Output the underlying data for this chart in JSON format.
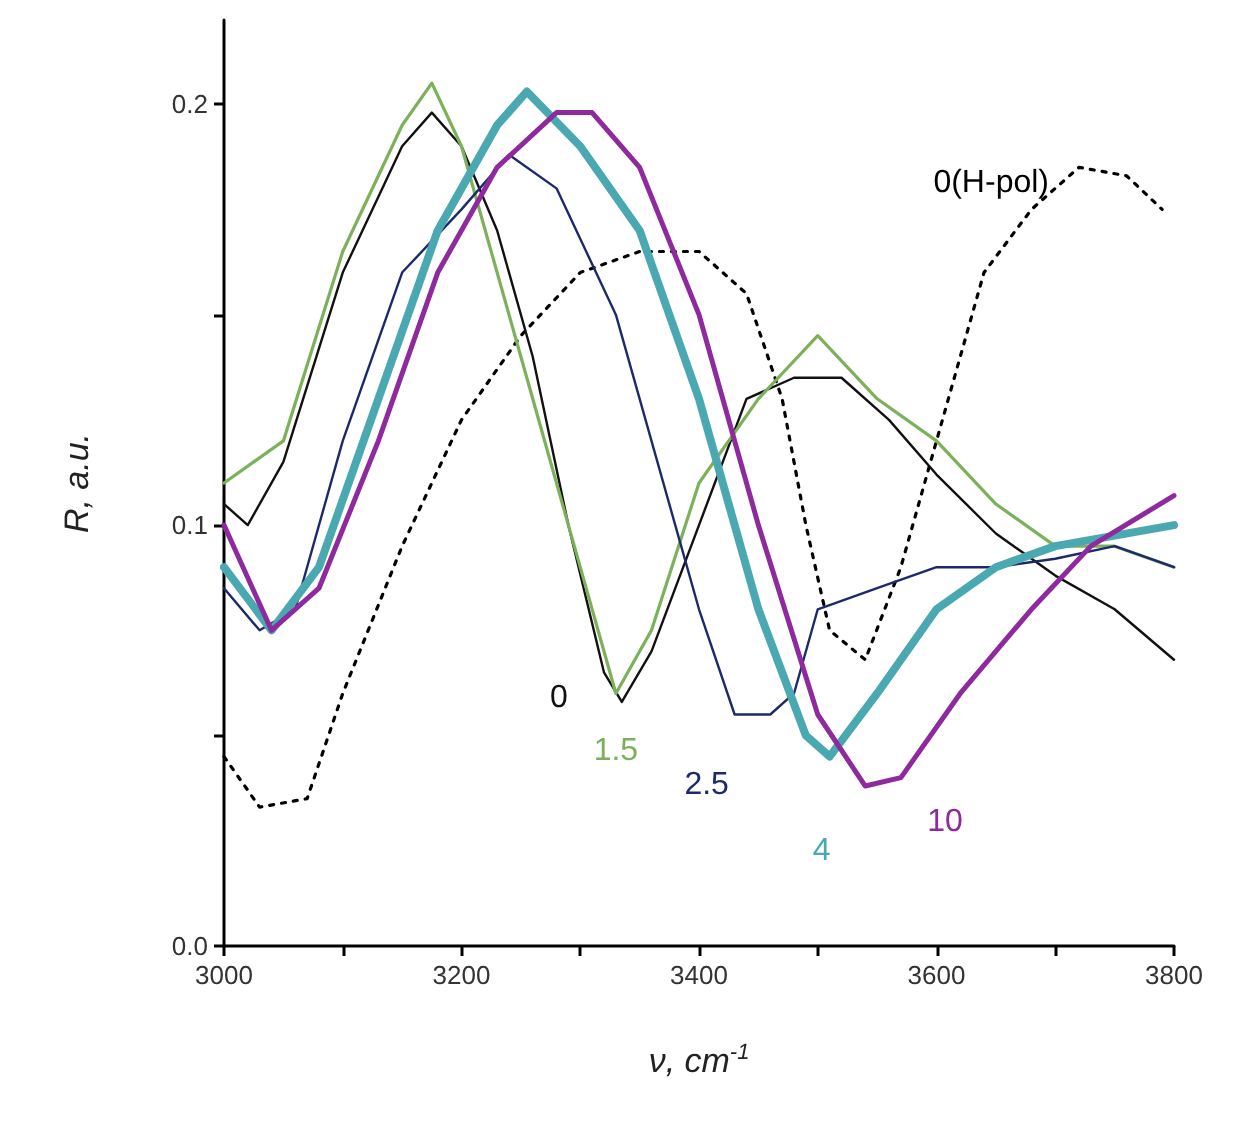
{
  "chart_data": {
    "type": "line",
    "xlabel": "ν, cm$^{-1}$",
    "ylabel": "R, a.u.",
    "xlim": [
      3000,
      3800
    ],
    "ylim": [
      0,
      0.22
    ],
    "xticks": [
      3000,
      {
        "value": 3100,
        "label": null
      },
      3200,
      {
        "value": 3300,
        "label": null
      },
      3400,
      {
        "value": 3500,
        "label": null
      },
      3600,
      {
        "value": 3700,
        "label": null
      },
      3800
    ],
    "yticks": [
      {
        "value": 0,
        "label": "0.0"
      },
      {
        "value": 0.05,
        "label": null
      },
      {
        "value": 0.1,
        "label": "0.1"
      },
      {
        "value": 0.15,
        "label": null
      },
      {
        "value": 0.2,
        "label": "0.2"
      }
    ],
    "grid": false,
    "legend": false,
    "marker": "none",
    "series": [
      {
        "name": "0(H-pol)",
        "color": "#000000",
        "line_style": "dotted",
        "x": [
          3000,
          3030,
          3070,
          3100,
          3150,
          3200,
          3250,
          3300,
          3350,
          3400,
          3440,
          3470,
          3490,
          3510,
          3540,
          3570,
          3600,
          3640,
          3680,
          3720,
          3760,
          3790
        ],
        "values": [
          0.045,
          0.033,
          0.035,
          0.06,
          0.095,
          0.125,
          0.145,
          0.16,
          0.165,
          0.165,
          0.155,
          0.13,
          0.1,
          0.075,
          0.068,
          0.09,
          0.12,
          0.16,
          0.175,
          0.185,
          0.183,
          0.175
        ]
      },
      {
        "name": "0",
        "color": "#111111",
        "x": [
          3000,
          3020,
          3050,
          3100,
          3150,
          3175,
          3200,
          3230,
          3260,
          3290,
          3320,
          3335,
          3360,
          3400,
          3440,
          3480,
          3520,
          3560,
          3600,
          3650,
          3700,
          3750,
          3800
        ],
        "values": [
          0.105,
          0.1,
          0.115,
          0.16,
          0.19,
          0.198,
          0.19,
          0.17,
          0.14,
          0.1,
          0.065,
          0.058,
          0.07,
          0.1,
          0.13,
          0.135,
          0.135,
          0.125,
          0.112,
          0.098,
          0.088,
          0.08,
          0.068
        ]
      },
      {
        "name": "1.5",
        "color": "#7db05a",
        "x": [
          3000,
          3050,
          3100,
          3150,
          3175,
          3200,
          3250,
          3300,
          3330,
          3360,
          3400,
          3450,
          3500,
          3550,
          3600,
          3650,
          3700,
          3750,
          3800
        ],
        "values": [
          0.11,
          0.12,
          0.165,
          0.195,
          0.205,
          0.19,
          0.14,
          0.09,
          0.06,
          0.075,
          0.11,
          0.13,
          0.145,
          0.13,
          0.12,
          0.105,
          0.095,
          0.095,
          0.09
        ]
      },
      {
        "name": "2.5",
        "color": "#1c2a6b",
        "x": [
          3000,
          3030,
          3060,
          3100,
          3150,
          3200,
          3240,
          3280,
          3330,
          3380,
          3400,
          3430,
          3460,
          3480,
          3500,
          3550,
          3600,
          3650,
          3700,
          3750,
          3800
        ],
        "values": [
          0.085,
          0.075,
          0.08,
          0.12,
          0.16,
          0.175,
          0.188,
          0.18,
          0.15,
          0.1,
          0.08,
          0.055,
          0.055,
          0.06,
          0.08,
          0.085,
          0.09,
          0.09,
          0.092,
          0.095,
          0.09
        ]
      },
      {
        "name": "4",
        "color": "#4aa8b0",
        "x": [
          3000,
          3040,
          3080,
          3130,
          3180,
          3230,
          3255,
          3300,
          3350,
          3400,
          3450,
          3490,
          3510,
          3550,
          3600,
          3650,
          3700,
          3800
        ],
        "values": [
          0.09,
          0.075,
          0.09,
          0.13,
          0.17,
          0.195,
          0.203,
          0.19,
          0.17,
          0.13,
          0.08,
          0.05,
          0.045,
          0.06,
          0.08,
          0.09,
          0.095,
          0.1
        ]
      },
      {
        "name": "10",
        "color": "#8e2a9e",
        "x": [
          3000,
          3040,
          3080,
          3130,
          3180,
          3230,
          3280,
          3310,
          3350,
          3400,
          3450,
          3500,
          3540,
          3570,
          3620,
          3680,
          3730,
          3800
        ],
        "values": [
          0.1,
          0.075,
          0.085,
          0.12,
          0.16,
          0.185,
          0.198,
          0.198,
          0.185,
          0.15,
          0.1,
          0.055,
          0.038,
          0.04,
          0.06,
          0.08,
          0.095,
          0.107
        ]
      }
    ]
  }
}
